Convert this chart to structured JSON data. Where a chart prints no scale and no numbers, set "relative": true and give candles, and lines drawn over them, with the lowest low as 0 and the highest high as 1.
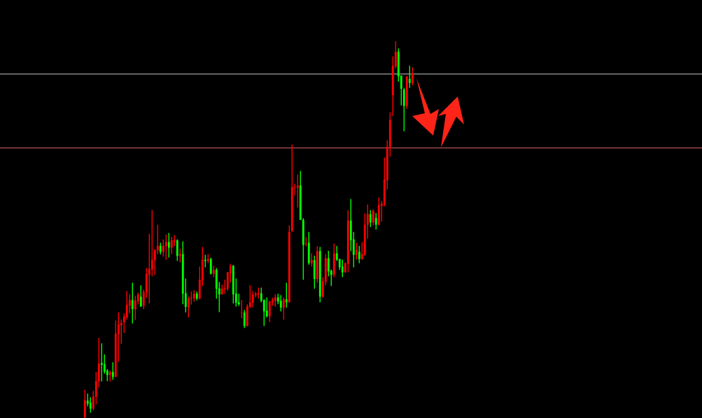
{
  "chart_data": {
    "type": "candlestick",
    "relative": true,
    "categories": [
      null,
      null,
      null,
      null,
      null,
      null,
      null,
      null,
      null,
      null,
      null,
      null,
      null,
      null,
      null,
      null,
      null,
      null,
      null,
      null,
      null,
      null,
      null,
      null,
      null,
      null,
      null,
      null,
      null,
      null,
      null,
      null,
      null,
      null,
      null,
      null,
      null,
      null,
      null,
      null,
      null,
      null,
      null,
      null,
      null,
      null,
      null,
      null,
      null,
      null,
      null,
      null,
      null,
      null,
      null,
      null,
      null,
      null,
      null,
      null,
      null,
      null,
      null,
      null,
      null,
      null,
      null,
      null,
      null,
      null,
      null,
      null,
      null,
      null,
      null,
      null,
      null,
      null,
      null,
      null,
      null,
      null,
      null,
      null,
      null,
      null,
      null,
      null,
      null,
      null,
      null,
      null,
      null,
      null,
      null,
      null,
      null,
      null,
      null,
      null,
      null,
      null,
      null,
      null,
      null,
      null,
      null,
      null,
      null,
      null,
      null,
      null,
      null,
      null,
      null,
      null,
      null,
      null
    ],
    "ohlc": [
      [
        0.002,
        0.075,
        0.0,
        0.047
      ],
      [
        0.046,
        0.065,
        0.031,
        0.038
      ],
      [
        0.041,
        0.055,
        0.014,
        0.025
      ],
      [
        0.025,
        0.072,
        0.02,
        0.057
      ],
      [
        0.056,
        0.122,
        0.036,
        0.098
      ],
      [
        0.097,
        0.213,
        0.081,
        0.144
      ],
      [
        0.146,
        0.198,
        0.097,
        0.141
      ],
      [
        0.143,
        0.169,
        0.118,
        0.123
      ],
      [
        0.126,
        0.13,
        0.098,
        0.114
      ],
      [
        0.114,
        0.126,
        0.097,
        0.122
      ],
      [
        0.122,
        0.148,
        0.101,
        0.109
      ],
      [
        0.109,
        0.259,
        0.109,
        0.224
      ],
      [
        0.223,
        0.28,
        0.15,
        0.248
      ],
      [
        0.246,
        0.261,
        0.197,
        0.252
      ],
      [
        0.254,
        0.278,
        0.226,
        0.269
      ],
      [
        0.267,
        0.337,
        0.261,
        0.3
      ],
      [
        0.298,
        0.328,
        0.278,
        0.313
      ],
      [
        0.313,
        0.359,
        0.251,
        0.289
      ],
      [
        0.289,
        0.324,
        0.26,
        0.312
      ],
      [
        0.31,
        0.333,
        0.302,
        0.328
      ],
      [
        0.322,
        0.352,
        0.295,
        0.296
      ],
      [
        0.298,
        0.341,
        0.289,
        0.335
      ],
      [
        0.334,
        0.398,
        0.32,
        0.382
      ],
      [
        0.38,
        0.489,
        0.304,
        0.396
      ],
      [
        0.394,
        0.552,
        0.376,
        0.42
      ],
      [
        0.419,
        0.448,
        0.38,
        0.446
      ],
      [
        0.445,
        0.513,
        0.435,
        0.457
      ],
      [
        0.457,
        0.465,
        0.434,
        0.441
      ],
      [
        0.441,
        0.474,
        0.428,
        0.457
      ],
      [
        0.456,
        0.487,
        0.42,
        0.467
      ],
      [
        0.467,
        0.491,
        0.426,
        0.452
      ],
      [
        0.452,
        0.481,
        0.435,
        0.472
      ],
      [
        0.467,
        0.485,
        0.456,
        0.472
      ],
      [
        0.472,
        0.474,
        0.417,
        0.43
      ],
      [
        0.43,
        0.45,
        0.413,
        0.435
      ],
      [
        0.435,
        0.469,
        0.302,
        0.33
      ],
      [
        0.331,
        0.37,
        0.28,
        0.295
      ],
      [
        0.294,
        0.322,
        0.267,
        0.317
      ],
      [
        0.317,
        0.336,
        0.301,
        0.319
      ],
      [
        0.317,
        0.339,
        0.309,
        0.33
      ],
      [
        0.33,
        0.336,
        0.312,
        0.317
      ],
      [
        0.317,
        0.402,
        0.315,
        0.367
      ],
      [
        0.365,
        0.454,
        0.35,
        0.42
      ],
      [
        0.42,
        0.433,
        0.4,
        0.417
      ],
      [
        0.417,
        0.435,
        0.411,
        0.422
      ],
      [
        0.422,
        0.426,
        0.381,
        0.383
      ],
      [
        0.383,
        0.404,
        0.374,
        0.393
      ],
      [
        0.393,
        0.398,
        0.317,
        0.343
      ],
      [
        0.344,
        0.361,
        0.281,
        0.328
      ],
      [
        0.328,
        0.354,
        0.328,
        0.343
      ],
      [
        0.341,
        0.367,
        0.33,
        0.344
      ],
      [
        0.343,
        0.387,
        0.337,
        0.387
      ],
      [
        0.385,
        0.409,
        0.359,
        0.404
      ],
      [
        0.404,
        0.406,
        0.304,
        0.328
      ],
      [
        0.33,
        0.37,
        0.296,
        0.306
      ],
      [
        0.307,
        0.33,
        0.298,
        0.302
      ],
      [
        0.279,
        0.313,
        0.265,
        0.28
      ],
      [
        0.28,
        0.287,
        0.239,
        0.244
      ],
      [
        0.244,
        0.302,
        0.243,
        0.296
      ],
      [
        0.294,
        0.352,
        0.293,
        0.307
      ],
      [
        0.306,
        0.337,
        0.293,
        0.328
      ],
      [
        0.326,
        0.335,
        0.32,
        0.33
      ],
      [
        0.328,
        0.346,
        0.317,
        0.331
      ],
      [
        0.331,
        0.346,
        0.307,
        0.311
      ],
      [
        0.313,
        0.315,
        0.244,
        0.283
      ],
      [
        0.285,
        0.32,
        0.267,
        0.27
      ],
      [
        0.27,
        0.311,
        0.254,
        0.309
      ],
      [
        0.307,
        0.319,
        0.298,
        0.313
      ],
      [
        0.311,
        0.328,
        0.296,
        0.32
      ],
      [
        0.32,
        0.33,
        0.302,
        0.309
      ],
      [
        0.311,
        0.326,
        0.283,
        0.293
      ],
      [
        0.293,
        0.32,
        0.261,
        0.315
      ],
      [
        0.315,
        0.359,
        0.293,
        0.307
      ],
      [
        0.307,
        0.511,
        0.307,
        0.494
      ],
      [
        0.496,
        0.726,
        0.494,
        0.613
      ],
      [
        0.611,
        0.622,
        0.591,
        0.612
      ],
      [
        0.611,
        0.646,
        0.559,
        0.617
      ],
      [
        0.617,
        0.656,
        0.526,
        0.526
      ],
      [
        0.526,
        0.53,
        0.367,
        0.459
      ],
      [
        0.462,
        0.48,
        0.456,
        0.463
      ],
      [
        0.465,
        0.494,
        0.407,
        0.411
      ],
      [
        0.411,
        0.437,
        0.402,
        0.419
      ],
      [
        0.419,
        0.431,
        0.343,
        0.369
      ],
      [
        0.369,
        0.456,
        0.359,
        0.443
      ],
      [
        0.443,
        0.454,
        0.307,
        0.322
      ],
      [
        0.322,
        0.374,
        0.319,
        0.363
      ],
      [
        0.361,
        0.435,
        0.352,
        0.424
      ],
      [
        0.424,
        0.444,
        0.376,
        0.389
      ],
      [
        0.391,
        0.394,
        0.35,
        0.38
      ],
      [
        0.38,
        0.463,
        0.374,
        0.437
      ],
      [
        0.437,
        0.457,
        0.417,
        0.42
      ],
      [
        0.422,
        0.422,
        0.393,
        0.4
      ],
      [
        0.402,
        0.42,
        0.374,
        0.387
      ],
      [
        0.387,
        0.413,
        0.385,
        0.411
      ],
      [
        0.409,
        0.552,
        0.387,
        0.524
      ],
      [
        0.524,
        0.581,
        0.443,
        0.472
      ],
      [
        0.474,
        0.494,
        0.4,
        0.433
      ],
      [
        0.433,
        0.465,
        0.42,
        0.446
      ],
      [
        0.441,
        0.457,
        0.411,
        0.422
      ],
      [
        0.422,
        0.467,
        0.42,
        0.435
      ],
      [
        0.433,
        0.543,
        0.431,
        0.513
      ],
      [
        0.513,
        0.567,
        0.476,
        0.541
      ],
      [
        0.541,
        0.552,
        0.507,
        0.519
      ],
      [
        0.519,
        0.554,
        0.511,
        0.55
      ],
      [
        0.531,
        0.544,
        0.5,
        0.513
      ],
      [
        0.513,
        0.585,
        0.511,
        0.565
      ],
      [
        0.563,
        0.576,
        0.522,
        0.569
      ],
      [
        0.567,
        0.691,
        0.561,
        0.633
      ],
      [
        0.631,
        0.737,
        0.607,
        0.72
      ],
      [
        0.719,
        0.811,
        0.694,
        0.791
      ],
      [
        0.857,
        0.959,
        0.802,
        0.935
      ],
      [
        0.933,
        1.0,
        0.928,
        0.972
      ],
      [
        0.972,
        0.981,
        0.893,
        0.907
      ],
      [
        0.909,
        0.909,
        0.83,
        0.874
      ],
      [
        0.872,
        0.876,
        0.761,
        0.828
      ],
      [
        0.828,
        0.907,
        0.82,
        0.907
      ],
      [
        0.9,
        0.935,
        0.876,
        0.889
      ],
      [
        0.889,
        0.931,
        0.883,
        0.913
      ]
    ],
    "ref_lines": [
      {
        "axis": "y",
        "value": 0.913,
        "color": "#a0a0a0"
      },
      {
        "axis": "y",
        "value": 0.717,
        "color": "#b05050"
      }
    ]
  }
}
